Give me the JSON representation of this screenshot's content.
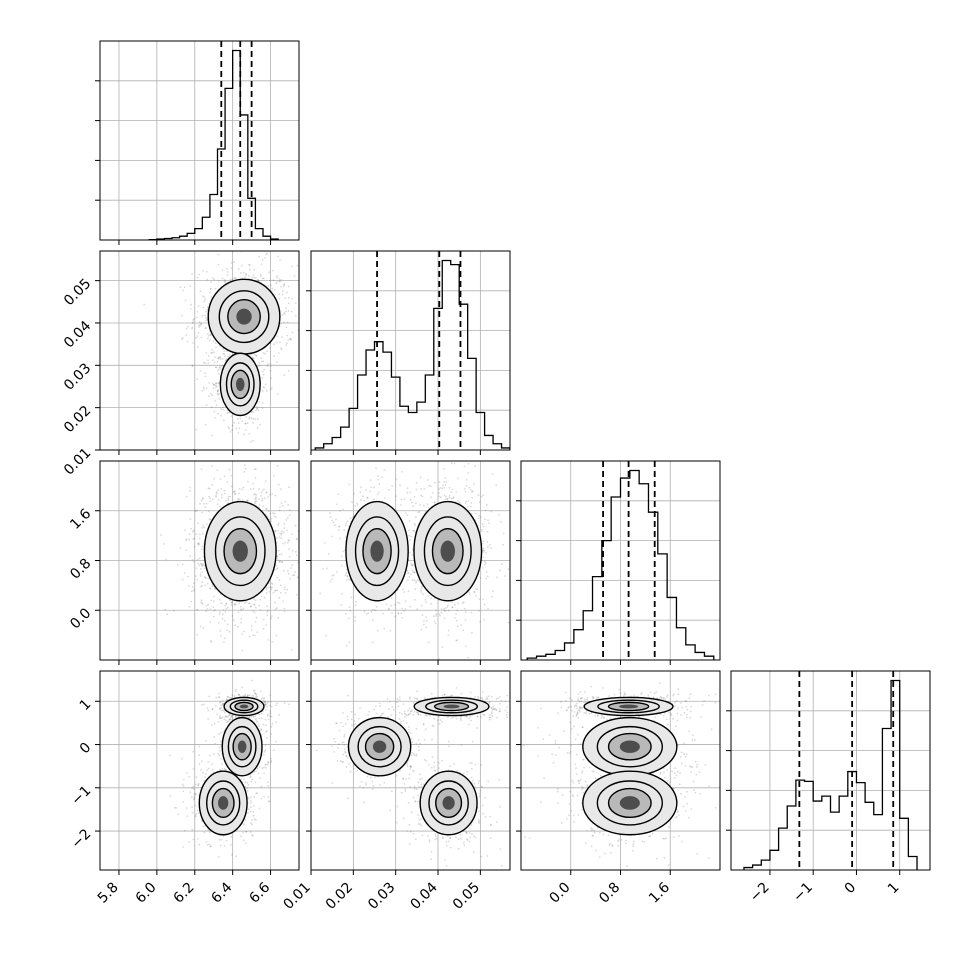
{
  "figure": {
    "background": "#ffffff"
  },
  "style": {
    "line_color": "#000000",
    "grid_color": "#b0b0b0",
    "scatter_color": "#555555",
    "fill_light": "#e8e8e8",
    "fill_mid": "#a9a9a9",
    "fill_dark": "#3a3a3a"
  },
  "chart_data": {
    "type": "corner",
    "grid": true,
    "parameters": [
      {
        "range": [
          5.7,
          6.75
        ],
        "ticks": [
          5.8,
          6.0,
          6.2,
          6.4,
          6.6
        ],
        "tick_labels": [
          "5.8",
          "6.0",
          "6.2",
          "6.4",
          "6.6"
        ]
      },
      {
        "range": [
          0.01,
          0.057
        ],
        "ticks": [
          0.01,
          0.02,
          0.03,
          0.04,
          0.05
        ],
        "tick_labels": [
          "0.01",
          "0.02",
          "0.03",
          "0.04",
          "0.05"
        ]
      },
      {
        "range": [
          -0.8,
          2.4
        ],
        "ticks": [
          0.0,
          0.8,
          1.6
        ],
        "tick_labels": [
          "0.0",
          "0.8",
          "1.6"
        ]
      },
      {
        "range": [
          -2.9,
          1.7
        ],
        "ticks": [
          -2,
          -1,
          0,
          1
        ],
        "tick_labels": [
          "−2",
          "−1",
          "0",
          "1"
        ]
      }
    ],
    "histograms": [
      {
        "parameter": 0,
        "bin_edges": [
          5.96,
          6.0,
          6.04,
          6.08,
          6.12,
          6.16,
          6.2,
          6.24,
          6.28,
          6.32,
          6.36,
          6.4,
          6.44,
          6.48,
          6.52,
          6.56,
          6.6,
          6.64
        ],
        "counts": [
          0.2,
          0.5,
          0.8,
          1.2,
          2,
          3.5,
          6,
          12,
          24,
          48,
          80,
          100,
          66,
          22,
          6,
          2,
          0.5
        ],
        "quantiles": [
          6.34,
          6.44,
          6.5
        ]
      },
      {
        "parameter": 1,
        "bin_edges": [
          0.011,
          0.013,
          0.015,
          0.017,
          0.019,
          0.021,
          0.023,
          0.025,
          0.027,
          0.029,
          0.031,
          0.033,
          0.035,
          0.037,
          0.039,
          0.041,
          0.043,
          0.045,
          0.047,
          0.049,
          0.051,
          0.053,
          0.055,
          0.057
        ],
        "counts": [
          1,
          3,
          6,
          11,
          20,
          36,
          48,
          52,
          47,
          35,
          21,
          18,
          23,
          36,
          68,
          91,
          89,
          70,
          44,
          18,
          7,
          3,
          1
        ],
        "quantiles": [
          0.0256,
          0.0403,
          0.0453
        ]
      },
      {
        "parameter": 2,
        "bin_edges": [
          -0.7,
          -0.55,
          -0.4,
          -0.25,
          -0.1,
          0.05,
          0.2,
          0.35,
          0.5,
          0.65,
          0.8,
          0.95,
          1.1,
          1.25,
          1.4,
          1.55,
          1.7,
          1.85,
          2.0,
          2.15,
          2.3
        ],
        "counts": [
          1,
          2,
          3,
          5,
          9,
          16,
          26,
          44,
          63,
          86,
          96,
          100,
          93,
          78,
          56,
          33,
          17,
          8,
          4,
          2
        ],
        "quantiles": [
          0.52,
          0.93,
          1.35
        ]
      },
      {
        "parameter": 3,
        "bin_edges": [
          -2.6,
          -2.4,
          -2.2,
          -2.0,
          -1.8,
          -1.6,
          -1.4,
          -1.2,
          -1.0,
          -0.8,
          -0.6,
          -0.4,
          -0.2,
          0.0,
          0.2,
          0.4,
          0.6,
          0.8,
          1.0,
          1.2,
          1.4
        ],
        "counts": [
          2,
          4,
          8,
          16,
          34,
          52,
          73,
          72,
          56,
          60,
          47,
          60,
          80,
          71,
          55,
          45,
          115,
          154,
          42,
          11
        ],
        "quantiles": [
          -1.32,
          -0.1,
          0.85
        ]
      }
    ],
    "pairs": [
      {
        "x": 0,
        "y": 1,
        "modes": [
          {
            "cx": 6.46,
            "cy": 0.0415,
            "sx": 0.09,
            "sy": 0.0042,
            "w": 0.62
          },
          {
            "cx": 6.44,
            "cy": 0.0255,
            "sx": 0.05,
            "sy": 0.0035,
            "w": 0.38
          }
        ]
      },
      {
        "x": 0,
        "y": 2,
        "modes": [
          {
            "cx": 6.44,
            "cy": 0.95,
            "sx": 0.09,
            "sy": 0.38,
            "w": 1.0
          }
        ]
      },
      {
        "x": 1,
        "y": 2,
        "modes": [
          {
            "cx": 0.0423,
            "cy": 0.95,
            "sx": 0.0038,
            "sy": 0.38,
            "w": 0.62
          },
          {
            "cx": 0.0256,
            "cy": 0.95,
            "sx": 0.0035,
            "sy": 0.38,
            "w": 0.38
          }
        ]
      },
      {
        "x": 0,
        "y": 3,
        "modes": [
          {
            "cx": 6.46,
            "cy": 0.88,
            "sx": 0.05,
            "sy": 0.1,
            "w": 0.34
          },
          {
            "cx": 6.45,
            "cy": -0.05,
            "sx": 0.05,
            "sy": 0.32,
            "w": 0.3
          },
          {
            "cx": 6.35,
            "cy": -1.35,
            "sx": 0.06,
            "sy": 0.35,
            "w": 0.36
          }
        ]
      },
      {
        "x": 1,
        "y": 3,
        "modes": [
          {
            "cx": 0.0432,
            "cy": 0.88,
            "sx": 0.0042,
            "sy": 0.1,
            "w": 0.34
          },
          {
            "cx": 0.0262,
            "cy": -0.05,
            "sx": 0.0035,
            "sy": 0.32,
            "w": 0.3
          },
          {
            "cx": 0.0425,
            "cy": -1.35,
            "sx": 0.0032,
            "sy": 0.35,
            "w": 0.36
          }
        ]
      },
      {
        "x": 2,
        "y": 3,
        "modes": [
          {
            "cx": 0.93,
            "cy": 0.88,
            "sx": 0.34,
            "sy": 0.1,
            "w": 0.34
          },
          {
            "cx": 0.95,
            "cy": -0.05,
            "sx": 0.36,
            "sy": 0.32,
            "w": 0.3
          },
          {
            "cx": 0.95,
            "cy": -1.35,
            "sx": 0.36,
            "sy": 0.35,
            "w": 0.36
          }
        ]
      }
    ]
  }
}
